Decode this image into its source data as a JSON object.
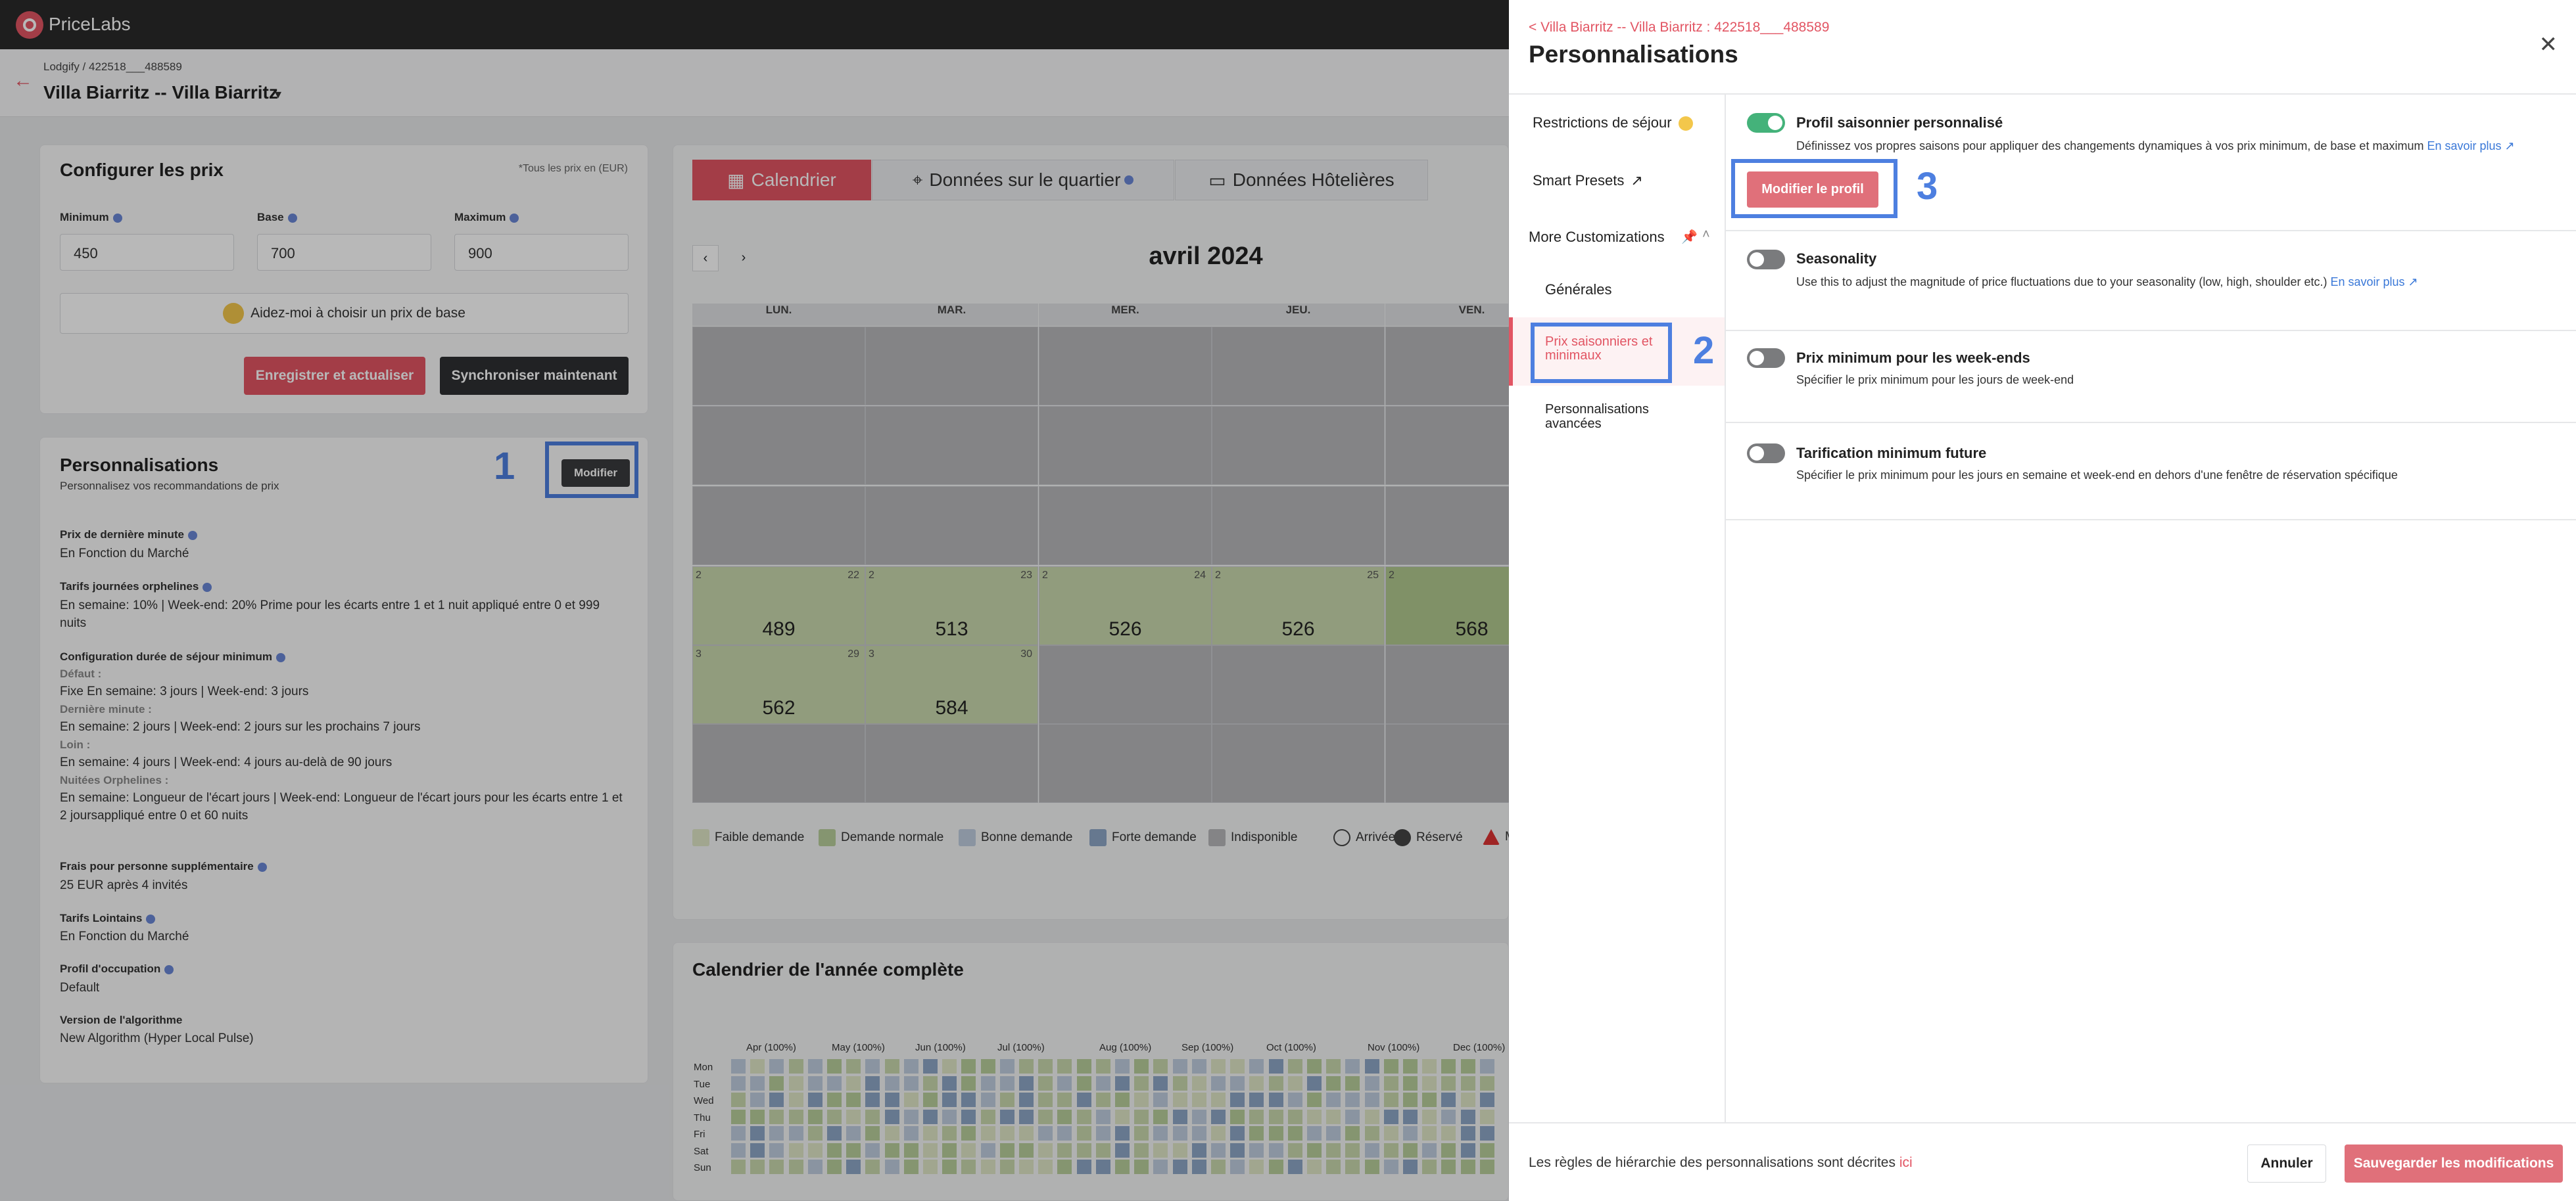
{
  "app": {
    "brand": "PriceLabs",
    "brand_colors": {
      "accent": "#e25563",
      "toggle_on": "#44b27a",
      "highlight": "#4d7fe0"
    }
  },
  "listing": {
    "breadcrumb": "Lodgify / 422518___488589",
    "name": "Villa Biarritz -- Villa Biarritz"
  },
  "configure": {
    "title": "Configurer les prix",
    "currency_note": "*Tous les prix en (EUR)",
    "min_label": "Minimum",
    "min_value": "450",
    "base_label": "Base",
    "base_value": "700",
    "max_label": "Maximum",
    "max_value": "900",
    "help_label": "Aidez-moi à choisir un prix de base",
    "save_label": "Enregistrer et actualiser",
    "sync_label": "Synchroniser maintenant"
  },
  "customizations": {
    "title": "Personnalisations",
    "subtitle": "Personnalisez vos recommandations de prix",
    "modify_label": "Modifier",
    "step": "1",
    "items": [
      {
        "label": "Prix de dernière minute",
        "value": "En Fonction du Marché"
      },
      {
        "label": "Tarifs journées orphelines",
        "value": "En semaine: 10% | Week-end: 20% Prime pour les écarts entre 1 et 1 nuit appliqué entre 0 et 999 nuits"
      },
      {
        "label": "Configuration durée de séjour minimum",
        "sub": [
          {
            "k": "Défaut :",
            "v": "Fixe En semaine: 3 jours | Week-end: 3 jours"
          },
          {
            "k": "Dernière minute :",
            "v": "En semaine: 2 jours | Week-end: 2 jours sur les prochains 7 jours"
          },
          {
            "k": "Loin :",
            "v": "En semaine: 4 jours | Week-end: 4 jours au-delà de 90 jours"
          },
          {
            "k": "Nuitées Orphelines :",
            "v": "En semaine: Longueur de l'écart jours | Week-end: Longueur de l'écart jours pour les écarts entre 1 et 2 joursappliqué entre 0 et 60 nuits"
          }
        ]
      },
      {
        "label": "Frais pour personne supplémentaire",
        "value": "25 EUR après 4 invités"
      },
      {
        "label": "Tarifs Lointains",
        "value": "En Fonction du Marché"
      },
      {
        "label": "Profil d'occupation",
        "value": "Default"
      },
      {
        "label": "Version de l'algorithme",
        "value": "New Algorithm (Hyper Local Pulse)"
      }
    ]
  },
  "calendar": {
    "tabs": [
      "Calendrier",
      "Données sur le quartier",
      "Données Hôtelières"
    ],
    "month": "avril 2024",
    "weekdays": [
      "LUN.",
      "MAR.",
      "MER.",
      "JEU.",
      "VEN."
    ],
    "week4": [
      {
        "d": "22",
        "p": "489"
      },
      {
        "d": "23",
        "p": "513"
      },
      {
        "d": "24",
        "p": "526"
      },
      {
        "d": "25",
        "p": "526"
      },
      {
        "d": "",
        "p": "568"
      }
    ],
    "week5": [
      {
        "d": "29",
        "p": "562"
      },
      {
        "d": "30",
        "p": "584"
      }
    ],
    "icon_text_week4": "2",
    "icon_text_week5": "3",
    "legend": [
      "Faible demande",
      "Demande normale",
      "Bonne demande",
      "Forte demande",
      "Indisponible",
      "Arrivée",
      "Réservé",
      "M"
    ],
    "legend_colors": [
      "#dfe6c6",
      "#b9cf9c",
      "#bfcde0",
      "#8ea7c7",
      "#b7b8ba"
    ]
  },
  "year": {
    "title": "Calendrier de l'année complète",
    "months": [
      "Apr (100%)",
      "May (100%)",
      "Jun (100%)",
      "Jul (100%)",
      "Aug (100%)",
      "Sep (100%)",
      "Oct (100%)",
      "Nov (100%)",
      "Dec (100%)"
    ],
    "days": [
      "Mon",
      "Tue",
      "Wed",
      "Thu",
      "Fri",
      "Sat",
      "Sun"
    ]
  },
  "panel": {
    "breadcrumb": "< Villa Biarritz -- Villa Biarritz : 422518___488589",
    "title": "Personnalisations",
    "nav": {
      "restrictions": "Restrictions de séjour",
      "smart": "Smart Presets",
      "more": "More Customizations",
      "general": "Générales",
      "seasonal": "Prix saisonniers et minimaux",
      "advanced": "Personnalisations avancées"
    },
    "step2": "2",
    "step3": "3",
    "options": [
      {
        "title": "Profil saisonnier personnalisé",
        "desc": "Définissez vos propres saisons pour appliquer des changements dynamiques à vos prix minimum, de base et maximum",
        "link": "En savoir plus",
        "on": true
      },
      {
        "title": "Seasonality",
        "desc": "Use this to adjust the magnitude of price fluctuations due to your seasonality (low, high, shoulder etc.)",
        "link": "En savoir plus",
        "on": false
      },
      {
        "title": "Prix minimum pour les week-ends",
        "desc": "Spécifier le prix minimum pour les jours de week-end",
        "on": false
      },
      {
        "title": "Tarification minimum future",
        "desc": "Spécifier le prix minimum pour les jours en semaine et week-end en dehors d'une fenêtre de réservation spécifique",
        "on": false
      }
    ],
    "edit_profile": "Modifier le profil",
    "footer_text": "Les règles de hiérarchie des personnalisations sont décrites",
    "footer_link": "ici",
    "cancel": "Annuler",
    "save": "Sauvegarder les modifications"
  }
}
